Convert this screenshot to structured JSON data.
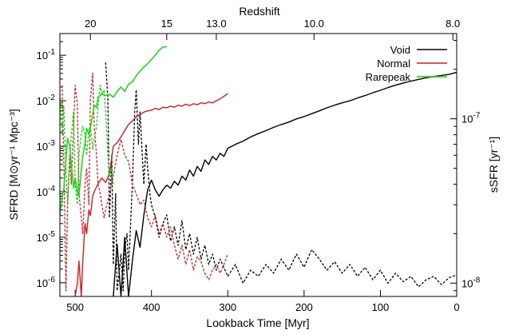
{
  "chart_data": {
    "type": "line",
    "xlabel": "Lookback Time [Myr]",
    "ylabel_left": "SFRD [M⊙yr⁻¹ Mpc⁻³]",
    "ylabel_right": "sSFR [yr⁻¹]",
    "xlabel_top": "Redshift",
    "xlim": [
      520,
      0
    ],
    "ylim_left": [
      5e-07,
      0.3
    ],
    "y_scale": "log",
    "ylim_right": [
      8.3e-09,
      3.3e-07
    ],
    "x_ticks": [
      500,
      400,
      300,
      200,
      100,
      0
    ],
    "x_tick_labels": [
      "500",
      "400",
      "300",
      "200",
      "100",
      "0"
    ],
    "y_left_ticks": [
      1e-06,
      1e-05,
      0.0001,
      0.001,
      0.01,
      0.1
    ],
    "y_left_tick_labels": [
      "10-6",
      "10-5",
      "10-4",
      "10-3",
      "10-2",
      "10-1"
    ],
    "y_right_ticks": [
      1e-08,
      1e-07
    ],
    "y_right_tick_labels": [
      "10-8",
      "10-7"
    ],
    "top_ticks": [
      {
        "label": "20",
        "at": 480
      },
      {
        "label": "15",
        "at": 380
      },
      {
        "label": "13.0",
        "at": 315
      },
      {
        "label": "10.0",
        "at": 187
      },
      {
        "label": "8.0",
        "at": 5
      }
    ],
    "grid": false,
    "legend_position": "top-right",
    "series": [
      {
        "name": "Void",
        "color": "#000000",
        "sfrd": {
          "x": [
            450,
            445,
            440,
            435,
            430,
            425,
            420,
            415,
            410,
            405,
            400,
            395,
            390,
            385,
            380,
            375,
            370,
            365,
            360,
            355,
            350,
            345,
            340,
            335,
            330,
            325,
            320,
            315,
            310,
            305,
            300,
            290,
            280,
            270,
            260,
            250,
            240,
            230,
            220,
            210,
            200,
            190,
            180,
            170,
            160,
            150,
            140,
            130,
            120,
            110,
            100,
            90,
            80,
            70,
            60,
            50,
            40,
            30,
            20,
            10,
            5,
            0
          ],
          "y": [
            5e-07,
            7e-06,
            5e-07,
            1e-05,
            5e-07,
            3e-06,
            1.4e-05,
            6e-06,
            3e-05,
            0.00011,
            0.00018,
            0.00011,
            8e-05,
            0.00011,
            0.00014,
            0.00012,
            0.00017,
            0.00014,
            0.00022,
            0.00018,
            0.0003,
            0.00022,
            0.00036,
            0.00028,
            0.0005,
            0.0004,
            0.0006,
            0.0005,
            0.0007,
            0.0006,
            0.0009,
            0.0011,
            0.0013,
            0.0016,
            0.0019,
            0.0022,
            0.0026,
            0.003,
            0.0034,
            0.004,
            0.0045,
            0.0052,
            0.006,
            0.007,
            0.008,
            0.009,
            0.01,
            0.0115,
            0.013,
            0.015,
            0.017,
            0.0195,
            0.022,
            0.0245,
            0.027,
            0.0295,
            0.032,
            0.034,
            0.036,
            0.038,
            0.04,
            0.042
          ]
        },
        "ssfr": {
          "x": [
            460,
            457,
            455,
            452,
            450,
            447,
            445,
            442,
            440,
            437,
            435,
            432,
            430,
            427,
            425,
            422,
            420,
            417,
            415,
            412,
            410,
            407,
            405,
            402,
            400,
            395,
            390,
            385,
            380,
            375,
            370,
            365,
            360,
            355,
            350,
            345,
            340,
            335,
            330,
            325,
            320,
            315,
            310,
            300,
            290,
            280,
            270,
            260,
            250,
            240,
            230,
            220,
            210,
            200,
            190,
            180,
            170,
            160,
            150,
            140,
            130,
            120,
            110,
            100,
            90,
            80,
            70,
            60,
            50,
            40,
            30,
            20,
            10,
            0
          ],
          "y": [
            2.2e-07,
            1.3e-07,
            2.5e-08,
            6e-08,
            1.3e-08,
            3.5e-08,
            9e-09,
            1.2e-08,
            1.5e-08,
            9e-09,
            1.6e-08,
            2e-08,
            1.2e-08,
            2.5e-08,
            4e-08,
            1.1e-07,
            1.5e-07,
            7e-08,
            1.1e-07,
            6e-08,
            4e-08,
            7e-08,
            5e-08,
            3.5e-08,
            3e-08,
            2.5e-08,
            1.9e-08,
            2.3e-08,
            2.6e-08,
            1.8e-08,
            2.2e-08,
            1.7e-08,
            2.4e-08,
            1.6e-08,
            2e-08,
            1.5e-08,
            1.9e-08,
            1.4e-08,
            1.7e-08,
            1.3e-08,
            1.5e-08,
            1.2e-08,
            1.4e-08,
            1.1e-08,
            1.3e-08,
            1e-08,
            1.2e-08,
            1.1e-08,
            1.3e-08,
            1.15e-08,
            1.4e-08,
            1.2e-08,
            1.5e-08,
            1.25e-08,
            1.6e-08,
            1.4e-08,
            1.2e-08,
            1.35e-08,
            1.15e-08,
            1.3e-08,
            1.1e-08,
            1.25e-08,
            1.05e-08,
            1.2e-08,
            1e-08,
            1.15e-08,
            1.02e-08,
            1.1e-08,
            9.5e-09,
            1.05e-08,
            1.1e-08,
            9.8e-09,
            1.08e-08,
            1.12e-08
          ]
        }
      },
      {
        "name": "Normal",
        "color": "#e41a1c",
        "sfrd": {
          "x": [
            500,
            497,
            495,
            492,
            490,
            487,
            485,
            482,
            480,
            477,
            475,
            470,
            465,
            460,
            455,
            450,
            445,
            440,
            435,
            430,
            425,
            420,
            415,
            410,
            405,
            400,
            395,
            390,
            385,
            380,
            375,
            370,
            365,
            360,
            355,
            350,
            345,
            340,
            335,
            330,
            325,
            320,
            315,
            310,
            305,
            300
          ],
          "y": [
            5e-07,
            1e-06,
            3e-06,
            5e-07,
            3e-06,
            2e-05,
            1.2e-05,
            4e-05,
            3e-05,
            8e-05,
            0.0001,
            0.00015,
            0.0002,
            0.00016,
            0.00025,
            0.001,
            0.0012,
            0.0016,
            0.0022,
            0.003,
            0.0036,
            0.0044,
            0.005,
            0.0056,
            0.006,
            0.0062,
            0.0068,
            0.0064,
            0.0072,
            0.007,
            0.0076,
            0.0072,
            0.008,
            0.0076,
            0.0084,
            0.0078,
            0.0086,
            0.0082,
            0.009,
            0.0086,
            0.0094,
            0.009,
            0.01,
            0.011,
            0.0125,
            0.0145
          ]
        },
        "ssfr": {
          "x": [
            517,
            515,
            512,
            510,
            507,
            505,
            502,
            500,
            497,
            495,
            492,
            490,
            487,
            485,
            482,
            480,
            477,
            475,
            472,
            470,
            467,
            465,
            462,
            460,
            455,
            450,
            445,
            440,
            435,
            430,
            425,
            420,
            415,
            410,
            405,
            400,
            395,
            390,
            385,
            380,
            375,
            370,
            365,
            360,
            355,
            350,
            345,
            340,
            335,
            330,
            325,
            320,
            315,
            310,
            305,
            300
          ],
          "y": [
            1.6e-07,
            6e-08,
            9e-09,
            3e-08,
            6e-08,
            4e-08,
            9e-08,
            1.6e-07,
            1.2e-07,
            3.5e-08,
            2.5e-08,
            2e-08,
            4e-08,
            5e-08,
            3e-08,
            1.3e-07,
            1.9e-07,
            9e-08,
            6e-08,
            4e-08,
            3.5e-08,
            3e-08,
            2.5e-08,
            2.8e-08,
            3.5e-08,
            4.5e-08,
            6e-08,
            7.5e-08,
            6e-08,
            5.5e-08,
            4e-08,
            3.5e-08,
            3e-08,
            3.2e-08,
            2.5e-08,
            2.2e-08,
            2.6e-08,
            2e-08,
            2.3e-08,
            1.9e-08,
            2.2e-08,
            1.7e-08,
            1.4e-08,
            1.7e-08,
            1.3e-08,
            1.6e-08,
            1.2e-08,
            1.45e-08,
            1.35e-08,
            1.15e-08,
            1.05e-08,
            1.2e-08,
            1.3e-08,
            1.15e-08,
            1.3e-08,
            1.5e-08
          ]
        }
      },
      {
        "name": "Rarepeak",
        "color": "#00e000",
        "sfrd": {
          "x": [
            520,
            517,
            515,
            512,
            510,
            507,
            505,
            502,
            500,
            497,
            495,
            492,
            490,
            487,
            485,
            482,
            480,
            477,
            475,
            472,
            470,
            465,
            460,
            455,
            450,
            445,
            440,
            435,
            430,
            425,
            420,
            415,
            410,
            405,
            400,
            395,
            390,
            385,
            380
          ],
          "y": [
            3e-05,
            8e-05,
            0.00011,
            0.0005,
            0.0015,
            0.001,
            0.0004,
            0.00012,
            0.0002,
            0.0001,
            8e-05,
            0.0003,
            0.0006,
            0.0012,
            0.0025,
            0.0018,
            0.0025,
            0.005,
            0.008,
            0.007,
            0.012,
            0.014,
            0.013,
            0.014,
            0.012,
            0.016,
            0.02,
            0.016,
            0.023,
            0.026,
            0.035,
            0.045,
            0.055,
            0.065,
            0.08,
            0.1,
            0.13,
            0.15,
            0.155
          ]
        },
        "ssfr": {
          "x": [
            520,
            517,
            515,
            512,
            510,
            507,
            505,
            502,
            500,
            497,
            495,
            492,
            490,
            487,
            485,
            482,
            480,
            477,
            475,
            472,
            470,
            467,
            465,
            462,
            460,
            457,
            455,
            452,
            450
          ],
          "y": [
            1.5e-07,
            8e-08,
            1.2e-07,
            5e-08,
            3e-08,
            5.5e-08,
            8e-08,
            1.1e-07,
            4e-08,
            3e-08,
            6e-08,
            8e-08,
            9e-08,
            8e-08,
            6e-08,
            8.5e-08,
            9e-08,
            6.5e-08,
            7.5e-08,
            9e-08,
            1.2e-07,
            1.6e-07,
            1.4e-07,
            1.5e-07,
            1.1e-07,
            6e-08,
            4.5e-08,
            5e-08,
            4e-08
          ]
        }
      }
    ]
  }
}
